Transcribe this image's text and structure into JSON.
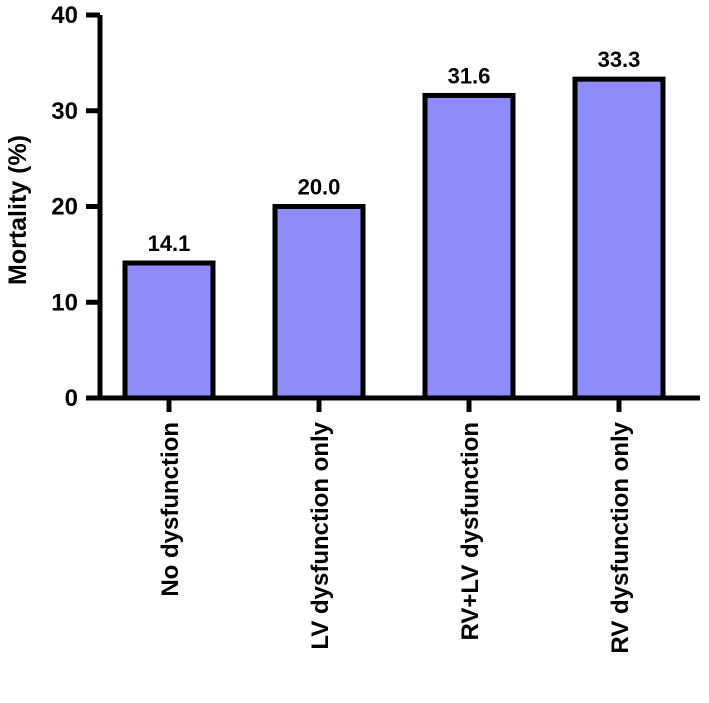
{
  "chart_data": {
    "type": "bar",
    "categories": [
      "No dysfunction",
      "LV dysfunction only",
      "RV+LV dysfunction",
      "RV dysfunction only"
    ],
    "values": [
      14.1,
      20.0,
      31.6,
      33.3
    ],
    "data_labels": [
      "14.1",
      "20.0",
      "31.6",
      "33.3"
    ],
    "title": "",
    "xlabel": "",
    "ylabel": "Mortality (%)",
    "ylim": [
      0,
      40
    ],
    "yticks": [
      0,
      10,
      20,
      30,
      40
    ],
    "grid": false,
    "legend": "none",
    "bar_color": "#8c8cfa",
    "edge_color": "#000000"
  }
}
